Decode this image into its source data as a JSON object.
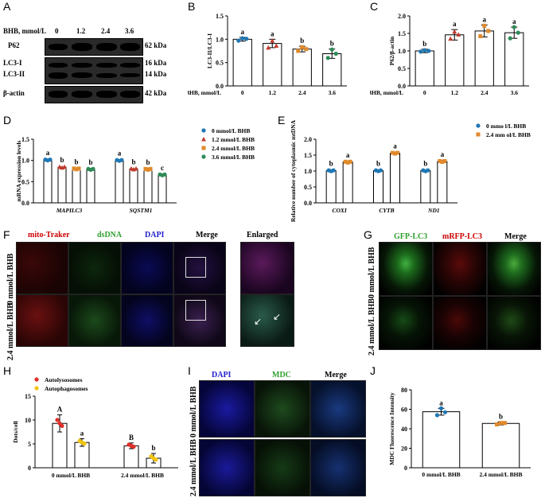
{
  "panel_letters": {
    "a": "A",
    "b": "B",
    "c": "C",
    "d": "D",
    "e": "E",
    "f": "F",
    "g": "G",
    "h": "H",
    "i": "I",
    "j": "J"
  },
  "westernblot": {
    "header_label": "BHB, mmol/L",
    "concentrations": [
      "0",
      "1.2",
      "2.4",
      "3.6"
    ],
    "rows": [
      {
        "left": "P62",
        "right": "62 kDa"
      },
      {
        "left": "LC3-I",
        "right": "16 kDa"
      },
      {
        "left": "LC3-II",
        "right": "14 kDa"
      },
      {
        "left": "β-actin",
        "right": "42 kDa"
      }
    ]
  },
  "panelF": {
    "columns": [
      "mito-Traker",
      "dsDNA",
      "DAPI",
      "Merge",
      "Enlarged"
    ],
    "column_colors": [
      "#cc0000",
      "#2e9e2e",
      "#2222cc",
      "#000000",
      "#000000"
    ],
    "rows": [
      "0 mmol/L BHB",
      "2.4 mmol/L BHB"
    ]
  },
  "panelG": {
    "columns": [
      "GFP-LC3",
      "mRFP-LC3",
      "Merge"
    ],
    "column_colors": [
      "#2e9e2e",
      "#cc0000",
      "#000000"
    ],
    "rows": [
      "0 mmol/L BHB",
      "2.4 mmol/L BHB"
    ]
  },
  "panelI": {
    "columns": [
      "DAPI",
      "MDC",
      "Merge"
    ],
    "column_colors": [
      "#2222cc",
      "#2e9e2e",
      "#000000"
    ],
    "rows": [
      "0 mmol/L BHB",
      "2.4 mmol/L BHB"
    ]
  },
  "chart_data": [
    {
      "id": "B",
      "type": "bar",
      "categories": [
        "0",
        "1.2",
        "2.4",
        "3.6"
      ],
      "values": [
        1.0,
        0.91,
        0.79,
        0.69
      ],
      "errors": [
        0.04,
        0.09,
        0.06,
        0.1
      ],
      "letters": [
        "a",
        "a",
        "b",
        "b"
      ],
      "ylabel": "LC3-II/LC3-I",
      "xlabel": "BHB, mmol/L",
      "ylim": [
        0,
        1.5
      ],
      "yticks": [
        "0.0",
        "0.5",
        "1.0",
        "1.5"
      ],
      "colors": [
        "#1f77b4",
        "#c0392b",
        "#e08a2c",
        "#2e8b57"
      ],
      "points": [
        [
          0.97,
          1.02,
          1.01
        ],
        [
          0.82,
          0.97,
          0.86
        ],
        [
          0.75,
          0.83,
          0.79
        ],
        [
          0.6,
          0.78,
          0.69
        ]
      ]
    },
    {
      "id": "C",
      "type": "bar",
      "categories": [
        "0",
        "1.2",
        "2.4",
        "3.6"
      ],
      "values": [
        1.0,
        1.46,
        1.57,
        1.52
      ],
      "errors": [
        0.05,
        0.15,
        0.17,
        0.16
      ],
      "letters": [
        "b",
        "a",
        "a",
        "a"
      ],
      "ylabel": "P62/β-actin",
      "xlabel": "BHB, mmol/L",
      "ylim": [
        0,
        2.0
      ],
      "yticks": [
        "0.0",
        "0.5",
        "1.0",
        "1.5",
        "2.0"
      ],
      "colors": [
        "#1f77b4",
        "#c0392b",
        "#e08a2c",
        "#2e8b57"
      ],
      "points": [
        [
          0.98,
          1.02,
          1.0
        ],
        [
          1.35,
          1.55,
          1.47
        ],
        [
          1.42,
          1.72,
          1.57
        ],
        [
          1.36,
          1.68,
          1.52
        ]
      ]
    },
    {
      "id": "D",
      "type": "bar",
      "groups": [
        "MAPILC3",
        "SQSTM1"
      ],
      "series": [
        {
          "name": "0 mmol/L BHB",
          "values": [
            1.01,
            1.0
          ],
          "color": "#1f77b4",
          "marker": "circle"
        },
        {
          "name": "1.2 mmol/L BHB",
          "values": [
            0.84,
            0.8
          ],
          "color": "#c0392b",
          "marker": "triangle"
        },
        {
          "name": "2.4 mmol/L BHB",
          "values": [
            0.8,
            0.79
          ],
          "color": "#e08a2c",
          "marker": "square"
        },
        {
          "name": "3.6 mmol/L BHB",
          "values": [
            0.79,
            0.66
          ],
          "color": "#2e8b57",
          "marker": "circle"
        }
      ],
      "letters": [
        [
          "a",
          "b",
          "b",
          "b"
        ],
        [
          "a",
          "b",
          "b",
          "c"
        ]
      ],
      "ylabel": "mRNA expression levels",
      "ylim": [
        0,
        1.5
      ],
      "yticks": [
        "0.0",
        "0.5",
        "1.0",
        "1.5"
      ]
    },
    {
      "id": "E",
      "type": "bar",
      "groups": [
        "COXI",
        "CYTB",
        "ND1"
      ],
      "series": [
        {
          "name": "0 mmo l/L BHB",
          "values": [
            1.01,
            1.01,
            1.01
          ],
          "color": "#1f77b4",
          "marker": "circle"
        },
        {
          "name": "2.4 mm ol/L BHB",
          "values": [
            1.28,
            1.56,
            1.3
          ],
          "color": "#e08a2c",
          "marker": "square"
        }
      ],
      "letters": [
        [
          "b",
          "a"
        ],
        [
          "b",
          "a"
        ],
        [
          "b",
          "a"
        ]
      ],
      "ylabel": "Relative number of cytoplasmic mtDNA",
      "ylim": [
        0,
        2.0
      ],
      "yticks": [
        "0.0",
        "0.5",
        "1.0",
        "1.5",
        "2.0"
      ]
    },
    {
      "id": "H",
      "type": "bar",
      "groups": [
        "0 mmol/L BHB",
        "2.4 mmol/L BHB"
      ],
      "series": [
        {
          "name": "Autolysosomes",
          "values": [
            9.3,
            4.6
          ],
          "errors": [
            1.8,
            0.6
          ],
          "color": "#e0302a"
        },
        {
          "name": "Autophagosomes",
          "values": [
            5.3,
            2.0
          ],
          "errors": [
            0.8,
            1.0
          ],
          "color": "#f2c40f"
        }
      ],
      "letters": [
        [
          "A",
          "a"
        ],
        [
          "B",
          "b"
        ]
      ],
      "ylabel": "Dots/cell",
      "ylim": [
        0,
        15
      ],
      "yticks": [
        "0",
        "5",
        "10",
        "15"
      ]
    },
    {
      "id": "J",
      "type": "bar",
      "categories": [
        "0 mmol/L BHB",
        "2.4 mmol/L BHB"
      ],
      "values": [
        57.5,
        45.5
      ],
      "errors": [
        3.5,
        1.5
      ],
      "letters": [
        "a",
        "b"
      ],
      "colors": [
        "#1f77b4",
        "#e08a2c"
      ],
      "ylabel": "MDC Fluorescence Intensity",
      "ylim": [
        0,
        80
      ],
      "yticks": [
        "0",
        "20",
        "40",
        "60",
        "80"
      ],
      "points": [
        [
          54,
          61,
          57
        ],
        [
          44.5,
          46,
          46
        ]
      ]
    }
  ]
}
